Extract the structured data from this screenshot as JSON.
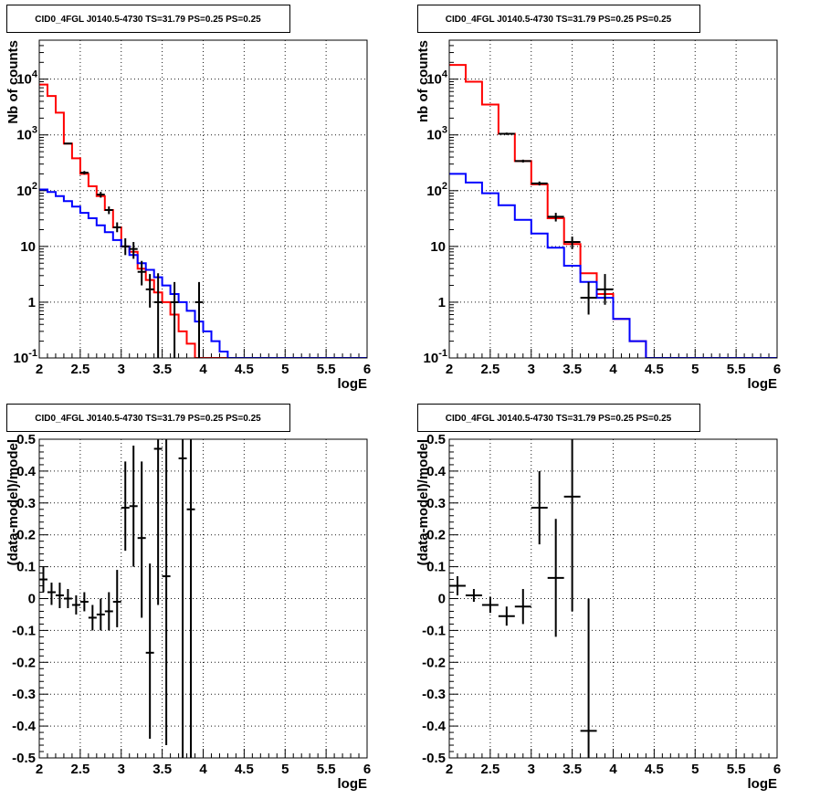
{
  "chart_data": [
    {
      "panel": "top-left",
      "type": "line",
      "title": "CID0_4FGL J0140.5-4730 TS=31.79 PS=0.25 PS=0.25",
      "xlabel": "logE",
      "ylabel": "Nb of counts",
      "xlim": [
        2,
        6
      ],
      "ylim": [
        0.1,
        50000
      ],
      "log_y": true,
      "grid": true,
      "x_ticks": [
        "2",
        "2.5",
        "3",
        "3.5",
        "4",
        "4.5",
        "5",
        "5.5",
        "6"
      ],
      "y_ticks": [
        {
          "v": 0.1,
          "b": "10",
          "e": "-1"
        },
        {
          "v": 1,
          "b": "1",
          "e": ""
        },
        {
          "v": 10,
          "b": "10",
          "e": ""
        },
        {
          "v": 100,
          "b": "10",
          "e": "2"
        },
        {
          "v": 1000,
          "b": "10",
          "e": "3"
        },
        {
          "v": 10000,
          "b": "10",
          "e": "4"
        }
      ],
      "series": [
        {
          "kind": "hist",
          "color": "#ff0000",
          "x0": 2.0,
          "dx": 0.1,
          "values": [
            8000,
            5000,
            2500,
            700,
            380,
            200,
            120,
            80,
            45,
            22,
            10,
            8,
            4,
            2.5,
            1.5,
            1.0,
            0.6,
            0.3,
            0.18,
            0.1,
            0.1,
            0.1,
            0.1,
            0.1,
            0.1,
            0.1,
            0.1,
            0.1,
            0.1,
            0.1,
            0.1,
            0.1,
            0.1,
            0.1,
            0.1,
            0.1,
            0.1,
            0.1,
            0.1,
            0.1
          ]
        },
        {
          "kind": "hist",
          "color": "#0000ff",
          "x0": 2.0,
          "dx": 0.1,
          "values": [
            105,
            95,
            80,
            65,
            52,
            40,
            32,
            24,
            18,
            13,
            10,
            7,
            5,
            3.8,
            2.8,
            2.0,
            1.4,
            1.0,
            0.7,
            0.45,
            0.3,
            0.2,
            0.13,
            0.1,
            0.1,
            0.1,
            0.1,
            0.1,
            0.1,
            0.1,
            0.1,
            0.1,
            0.1,
            0.1,
            0.1,
            0.1,
            0.1,
            0.1,
            0.1,
            0.1
          ]
        },
        {
          "kind": "points",
          "color": "#000000",
          "dx": 0.1,
          "x": [
            2.05,
            2.15,
            2.25,
            2.35,
            2.45,
            2.55,
            2.65,
            2.75,
            2.85,
            2.95,
            3.05,
            3.15,
            3.25,
            3.35,
            3.45,
            3.55,
            3.65,
            3.75,
            3.85,
            3.95
          ],
          "y": [
            8000,
            5000,
            2400,
            700,
            380,
            210,
            110,
            85,
            45,
            22,
            10,
            9,
            3.5,
            1.7,
            1.0,
            1.0,
            1,
            1,
            1,
            1
          ],
          "ylo": [
            7900,
            4900,
            2350,
            680,
            360,
            195,
            100,
            75,
            38,
            18,
            7,
            6,
            2,
            0.8,
            0.1,
            0.1,
            0.1,
            0.1,
            0.1,
            0.1
          ],
          "yhi": [
            8100,
            5100,
            2450,
            720,
            400,
            225,
            120,
            95,
            52,
            27,
            14,
            12,
            5.5,
            3.2,
            3.3,
            2.3,
            2.3,
            2.3,
            2.3,
            2.3
          ],
          "show": [
            false,
            false,
            false,
            true,
            false,
            true,
            false,
            true,
            true,
            true,
            true,
            true,
            true,
            true,
            true,
            false,
            true,
            false,
            false,
            true
          ]
        }
      ]
    },
    {
      "panel": "top-right",
      "type": "line",
      "title": "CID0_4FGL J0140.5-4730 TS=31.79 PS=0.25 PS=0.25",
      "xlabel": "logE",
      "ylabel": "nb of counts",
      "xlim": [
        2,
        6
      ],
      "ylim": [
        0.1,
        50000
      ],
      "log_y": true,
      "grid": true,
      "x_ticks": [
        "2",
        "2.5",
        "3",
        "3.5",
        "4",
        "4.5",
        "5",
        "5.5",
        "6"
      ],
      "y_ticks": [
        {
          "v": 0.1,
          "b": "10",
          "e": "-1"
        },
        {
          "v": 1,
          "b": "1",
          "e": ""
        },
        {
          "v": 10,
          "b": "10",
          "e": ""
        },
        {
          "v": 100,
          "b": "10",
          "e": "2"
        },
        {
          "v": 1000,
          "b": "10",
          "e": "3"
        },
        {
          "v": 10000,
          "b": "10",
          "e": "4"
        }
      ],
      "series": [
        {
          "kind": "hist",
          "color": "#ff0000",
          "x0": 2.0,
          "dx": 0.2,
          "values": [
            18000,
            9000,
            3500,
            1050,
            340,
            130,
            32,
            11,
            3.3,
            1.4,
            0.5,
            0.2,
            0.1,
            0.1,
            0.1,
            0.1,
            0.1,
            0.1,
            0.1,
            0.1
          ]
        },
        {
          "kind": "hist",
          "color": "#0000ff",
          "x0": 2.0,
          "dx": 0.2,
          "values": [
            200,
            140,
            90,
            55,
            30,
            17,
            9.5,
            4.5,
            2.3,
            1.2,
            0.5,
            0.2,
            0.1,
            0.1,
            0.1,
            0.1,
            0.1,
            0.1,
            0.1,
            0.1
          ]
        },
        {
          "kind": "points",
          "color": "#000000",
          "dx": 0.2,
          "x": [
            2.1,
            2.3,
            2.5,
            2.7,
            2.9,
            3.1,
            3.3,
            3.5,
            3.7,
            3.9
          ],
          "y": [
            18000,
            9000,
            3400,
            1050,
            340,
            135,
            34,
            12,
            1.2,
            1.7
          ],
          "ylo": [
            17800,
            8850,
            3300,
            1000,
            320,
            124,
            28,
            9,
            0.6,
            0.9
          ],
          "yhi": [
            18200,
            9150,
            3500,
            1100,
            360,
            146,
            40,
            15,
            2.3,
            3.2
          ],
          "show": [
            false,
            false,
            false,
            true,
            true,
            true,
            true,
            true,
            true,
            true
          ]
        }
      ]
    },
    {
      "panel": "bottom-left",
      "type": "scatter",
      "title": "CID0_4FGL J0140.5-4730 TS=31.79 PS=0.25 PS=0.25",
      "xlabel": "logE",
      "ylabel": "(data-model)/model",
      "xlim": [
        2,
        6
      ],
      "ylim": [
        -0.5,
        0.5
      ],
      "log_y": false,
      "grid": true,
      "x_ticks": [
        "2",
        "2.5",
        "3",
        "3.5",
        "4",
        "4.5",
        "5",
        "5.5",
        "6"
      ],
      "y_ticks": [
        "-0.5",
        "-0.4",
        "-0.3",
        "-0.2",
        "-0.1",
        "0",
        "0.1",
        "0.2",
        "0.3",
        "0.4",
        "0.5"
      ],
      "series": [
        {
          "kind": "points",
          "color": "#000000",
          "dx": 0.1,
          "x": [
            2.05,
            2.15,
            2.25,
            2.35,
            2.45,
            2.55,
            2.65,
            2.75,
            2.85,
            2.95,
            3.05,
            3.15,
            3.25,
            3.35,
            3.45,
            3.55,
            3.75,
            3.85
          ],
          "y": [
            0.06,
            0.02,
            0.01,
            0.0,
            -0.02,
            -0.01,
            -0.06,
            -0.05,
            -0.04,
            -0.01,
            0.285,
            0.29,
            0.19,
            -0.17,
            0.47,
            0.07,
            0.44,
            0.28
          ],
          "ylo": [
            0.02,
            -0.02,
            -0.03,
            -0.03,
            -0.05,
            -0.04,
            -0.1,
            -0.1,
            -0.1,
            -0.09,
            0.15,
            0.1,
            -0.06,
            -0.44,
            -0.02,
            -0.46,
            -0.5,
            -0.5
          ],
          "yhi": [
            0.1,
            0.05,
            0.05,
            0.03,
            0.01,
            0.02,
            -0.02,
            0.0,
            0.02,
            0.09,
            0.43,
            0.48,
            0.43,
            0.11,
            0.5,
            0.5,
            0.5,
            0.5
          ]
        }
      ]
    },
    {
      "panel": "bottom-right",
      "type": "scatter",
      "title": "CID0_4FGL J0140.5-4730 TS=31.79 PS=0.25 PS=0.25",
      "xlabel": "logE",
      "ylabel": "(data-model)/model",
      "xlim": [
        2,
        6
      ],
      "ylim": [
        -0.5,
        0.5
      ],
      "log_y": false,
      "grid": true,
      "x_ticks": [
        "2",
        "2.5",
        "3",
        "3.5",
        "4",
        "4.5",
        "5",
        "5.5",
        "6"
      ],
      "y_ticks": [
        "-0.5",
        "-0.4",
        "-0.3",
        "-0.2",
        "-0.1",
        "0",
        "0.1",
        "0.2",
        "0.3",
        "0.4",
        "0.5"
      ],
      "series": [
        {
          "kind": "points",
          "color": "#000000",
          "dx": 0.2,
          "x": [
            2.1,
            2.3,
            2.5,
            2.7,
            2.9,
            3.1,
            3.3,
            3.5,
            3.7
          ],
          "y": [
            0.04,
            0.01,
            -0.02,
            -0.055,
            -0.025,
            0.285,
            0.065,
            0.32,
            -0.415
          ],
          "ylo": [
            0.01,
            -0.01,
            -0.045,
            -0.085,
            -0.08,
            0.17,
            -0.12,
            -0.04,
            -0.5
          ],
          "yhi": [
            0.07,
            0.03,
            0.005,
            -0.025,
            0.03,
            0.4,
            0.25,
            0.5,
            0.0
          ]
        }
      ]
    }
  ]
}
